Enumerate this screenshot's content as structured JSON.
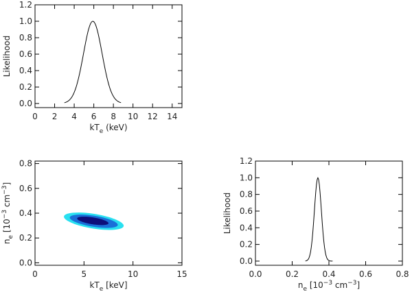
{
  "chart_data": [
    {
      "id": "kte-likelihood",
      "type": "line",
      "xlabel_main": "kT",
      "xlabel_sub": "e",
      "xlabel_unit": "(keV)",
      "ylabel": "Likelihood",
      "xlim": [
        0,
        15
      ],
      "ylim": [
        -0.05,
        1.2
      ],
      "xticks": [
        0,
        2,
        4,
        6,
        8,
        10,
        12,
        14
      ],
      "xtick_labels": [
        "0",
        "2",
        "4",
        "6",
        "8",
        "10",
        "12",
        "14"
      ],
      "yticks": [
        0.0,
        0.2,
        0.4,
        0.6,
        0.8,
        1.0,
        1.2
      ],
      "ytick_labels": [
        "0.0",
        "0.2",
        "0.4",
        "0.6",
        "0.8",
        "1.0",
        "1.2"
      ],
      "series": [
        {
          "name": "likelihood",
          "model": "gaussian",
          "peak_x": 5.9,
          "sigma": 0.95,
          "amplitude": 1.0,
          "x_range": [
            3.0,
            8.8
          ]
        }
      ]
    },
    {
      "id": "ne-kte-contours",
      "type": "contour",
      "xlabel_main": "kT",
      "xlabel_sub": "e",
      "xlabel_unit": "[keV]",
      "ylabel_main": "n",
      "ylabel_sub": "e",
      "ylabel_unit_pre": "[10",
      "ylabel_unit_exp": "−3",
      "ylabel_unit_mid": "cm",
      "ylabel_unit_exp2": "−3",
      "ylabel_unit_post": "]",
      "xlim": [
        0,
        15
      ],
      "ylim": [
        -0.02,
        0.82
      ],
      "xticks": [
        0,
        5,
        10,
        15
      ],
      "xtick_labels": [
        "0",
        "5",
        "10",
        "15"
      ],
      "yticks": [
        0.0,
        0.2,
        0.4,
        0.6,
        0.8
      ],
      "ytick_labels": [
        "0.0",
        "0.2",
        "0.4",
        "0.6",
        "0.8"
      ],
      "contours": [
        {
          "level": "outer",
          "color": "#29e0f0",
          "center": [
            6.0,
            0.335
          ],
          "x_halfwidth": 3.05,
          "y_halfwidth": 0.06,
          "tilt": -0.012
        },
        {
          "level": "middle",
          "color": "#1a6fd8",
          "center": [
            6.0,
            0.335
          ],
          "x_halfwidth": 2.45,
          "y_halfwidth": 0.045,
          "tilt": -0.012
        },
        {
          "level": "inner",
          "color": "#0d0f7a",
          "center": [
            5.9,
            0.338
          ],
          "x_halfwidth": 1.6,
          "y_halfwidth": 0.028,
          "tilt": -0.012
        }
      ]
    },
    {
      "id": "ne-likelihood",
      "type": "line",
      "xlabel_main": "n",
      "xlabel_sub": "e",
      "xlabel_unit_pre": "[10",
      "xlabel_unit_exp": "−3",
      "xlabel_unit_mid": "cm",
      "xlabel_unit_exp2": "−3",
      "xlabel_unit_post": "]",
      "ylabel": "Likelihood",
      "xlim": [
        0,
        0.8
      ],
      "ylim": [
        -0.05,
        1.2
      ],
      "xticks": [
        0.0,
        0.2,
        0.4,
        0.6,
        0.8
      ],
      "xtick_labels": [
        "0.0",
        "0.2",
        "0.4",
        "0.6",
        "0.8"
      ],
      "yticks": [
        0.0,
        0.2,
        0.4,
        0.6,
        0.8,
        1.0,
        1.2
      ],
      "ytick_labels": [
        "0.0",
        "0.2",
        "0.4",
        "0.6",
        "0.8",
        "1.0",
        "1.2"
      ],
      "series": [
        {
          "name": "likelihood",
          "model": "gaussian",
          "peak_x": 0.34,
          "sigma": 0.019,
          "amplitude": 1.0,
          "x_range": [
            0.27,
            0.42
          ]
        }
      ]
    }
  ]
}
